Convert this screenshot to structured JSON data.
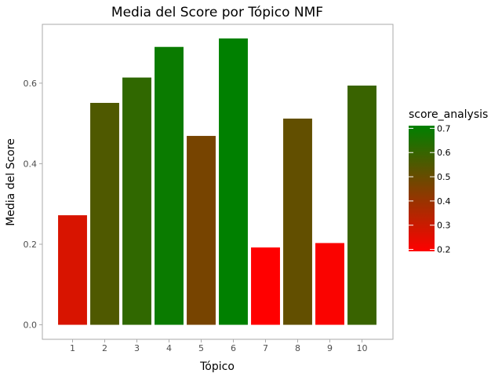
{
  "chart_data": {
    "type": "bar",
    "title": "Media del Score por Tópico NMF",
    "xlabel": "Tópico",
    "ylabel": "Media del Score",
    "categories": [
      "1",
      "2",
      "3",
      "4",
      "5",
      "6",
      "7",
      "8",
      "9",
      "10"
    ],
    "values": [
      0.272,
      0.551,
      0.614,
      0.69,
      0.469,
      0.711,
      0.192,
      0.512,
      0.203,
      0.594
    ],
    "ylim": [
      -0.036,
      0.746
    ],
    "yticks": [
      0.0,
      0.2,
      0.4,
      0.6
    ],
    "ytick_labels": [
      "0.0",
      "0.2",
      "0.4",
      "0.6"
    ],
    "grid": false,
    "legend": {
      "title": "score_analysis",
      "placement": "right",
      "ticks": [
        0.2,
        0.3,
        0.4,
        0.5,
        0.6,
        0.7
      ],
      "tick_labels": [
        "0.2",
        "0.3",
        "0.4",
        "0.5",
        "0.6",
        "0.7"
      ],
      "range": [
        0.192,
        0.711
      ]
    },
    "colors": {
      "low": "#ff0000",
      "high": "#008000",
      "axis": "#aaaaaa",
      "tick_text": "#4d4d4d",
      "text": "#000000"
    }
  }
}
